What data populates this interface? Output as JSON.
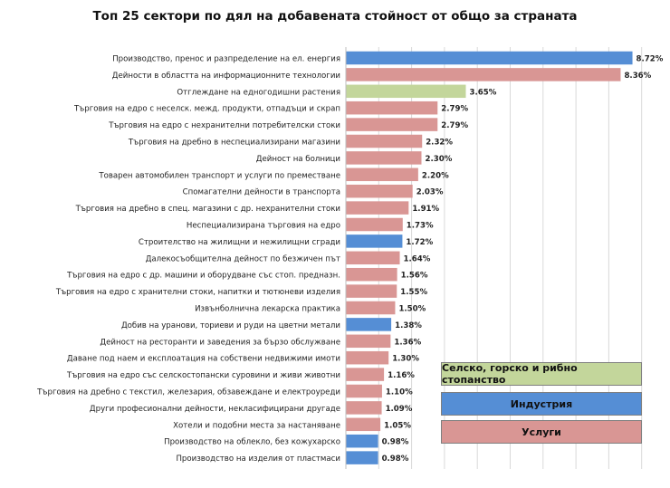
{
  "colors": {
    "agriculture": "#c3d69b",
    "industry": "#558ed5",
    "services": "#d99694",
    "grid": "#d9d9d9"
  },
  "legend": [
    {
      "key": "agriculture",
      "label": "Селско, горско и рибно стопанство"
    },
    {
      "key": "industry",
      "label": "Индустрия"
    },
    {
      "key": "services",
      "label": "Услуги"
    }
  ],
  "chart_data": {
    "type": "bar",
    "orientation": "horizontal",
    "title": "Топ 25 сектори по дял на добавената стойност от общо за страната",
    "xlim": [
      0,
      9
    ],
    "grid": true,
    "legend_position": "bottom-right",
    "categories": [
      "Производство, пренос и разпределение на ел. енергия",
      "Дейности в областта на информационните технологии",
      "Отглеждане на едногодишни растения",
      "Търговия на едро с неселск. межд. продукти, отпадъци и скрап",
      "Търговия на едро с нехранителни потребителски стоки",
      "Търговия на дребно в неспециализирани магазини",
      "Дейност на болници",
      "Товарен автомобилен транспорт и услуги по преместване",
      "Спомагателни дейности в транспорта",
      "Търговия на дребно в спец. магазини с др. нехранителни стоки",
      "Неспециализирана търговия на едро",
      "Строителство на жилищни и нежилищни сгради",
      "Далекосъобщителна дейност по безжичен път",
      "Търговия на едро с др. машини и оборудване със стоп. предназн.",
      "Търговия на едро с хранителни стоки, напитки и тютюневи изделия",
      "Извънболнична лекарска практика",
      "Добив на уранови, ториеви и руди на цветни метали",
      "Дейност на ресторанти и заведения за бързо обслужване",
      "Даване под наем и експлоатация на собствени недвижими имоти",
      "Търговия на едро със селскостопански суровини и живи животни",
      "Търговия на дребно с текстил, железария, обзавеждане и електроуреди",
      "Други професионални дейности, некласифицирани другаде",
      "Хотели и подобни места за настаняване",
      "Производство на облекло, без кожухарско",
      "Производство на изделия от пластмаси"
    ],
    "values": [
      8.72,
      8.36,
      3.65,
      2.79,
      2.79,
      2.32,
      2.3,
      2.2,
      2.03,
      1.91,
      1.73,
      1.72,
      1.64,
      1.56,
      1.55,
      1.5,
      1.38,
      1.36,
      1.3,
      1.16,
      1.1,
      1.09,
      1.05,
      0.98,
      0.98
    ],
    "labels": [
      "8.72%",
      "8.36%",
      "3.65%",
      "2.79%",
      "2.79%",
      "2.32%",
      "2.30%",
      "2.20%",
      "2.03%",
      "1.91%",
      "1.73%",
      "1.72%",
      "1.64%",
      "1.56%",
      "1.55%",
      "1.50%",
      "1.38%",
      "1.36%",
      "1.30%",
      "1.16%",
      "1.10%",
      "1.09%",
      "1.05%",
      "0.98%",
      "0.98%"
    ],
    "groups": [
      "industry",
      "services",
      "agriculture",
      "services",
      "services",
      "services",
      "services",
      "services",
      "services",
      "services",
      "services",
      "industry",
      "services",
      "services",
      "services",
      "services",
      "industry",
      "services",
      "services",
      "services",
      "services",
      "services",
      "services",
      "industry",
      "industry"
    ]
  }
}
